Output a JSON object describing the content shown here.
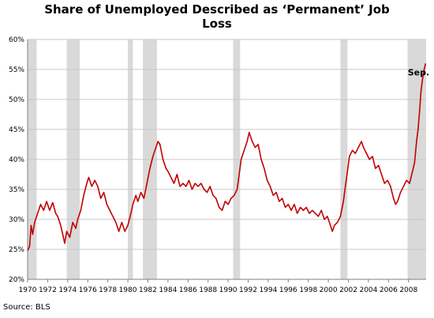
{
  "chart_data": {
    "type": "line",
    "title_lines": [
      "Share of Unemployed Described as ‘Permanent’ Job",
      "Loss"
    ],
    "xlabel": "",
    "ylabel": "",
    "xlim": [
      1970,
      2009.75
    ],
    "ylim": [
      20,
      60
    ],
    "y_ticks": [
      20,
      25,
      30,
      35,
      40,
      45,
      50,
      55,
      60
    ],
    "y_tick_suffix": "%",
    "x_ticks": [
      1970,
      1972,
      1974,
      1976,
      1978,
      1980,
      1982,
      1984,
      1986,
      1988,
      1990,
      1992,
      1994,
      1996,
      1998,
      2000,
      2002,
      2004,
      2006,
      2008
    ],
    "grid": true,
    "recession_bands": [
      [
        1970.0,
        1970.9
      ],
      [
        1973.9,
        1975.2
      ],
      [
        1980.0,
        1980.5
      ],
      [
        1981.5,
        1982.9
      ],
      [
        1990.5,
        1991.2
      ],
      [
        2001.2,
        2001.9
      ],
      [
        2007.9,
        2009.75
      ]
    ],
    "series": [
      {
        "color": "#c00000",
        "points": [
          [
            1970.0,
            24.8
          ],
          [
            1970.2,
            25.5
          ],
          [
            1970.35,
            29.0
          ],
          [
            1970.5,
            27.5
          ],
          [
            1970.7,
            29.5
          ],
          [
            1971.0,
            31.0
          ],
          [
            1971.3,
            32.5
          ],
          [
            1971.6,
            31.5
          ],
          [
            1971.9,
            33.0
          ],
          [
            1972.2,
            31.5
          ],
          [
            1972.5,
            32.8
          ],
          [
            1972.8,
            31.0
          ],
          [
            1973.0,
            30.5
          ],
          [
            1973.3,
            29.0
          ],
          [
            1973.5,
            27.5
          ],
          [
            1973.7,
            26.0
          ],
          [
            1973.9,
            28.0
          ],
          [
            1974.2,
            27.0
          ],
          [
            1974.5,
            29.5
          ],
          [
            1974.8,
            28.5
          ],
          [
            1975.0,
            30.0
          ],
          [
            1975.3,
            31.5
          ],
          [
            1975.6,
            34.0
          ],
          [
            1975.9,
            36.0
          ],
          [
            1976.1,
            37.0
          ],
          [
            1976.4,
            35.5
          ],
          [
            1976.7,
            36.5
          ],
          [
            1977.0,
            35.5
          ],
          [
            1977.3,
            33.5
          ],
          [
            1977.6,
            34.5
          ],
          [
            1977.9,
            32.5
          ],
          [
            1978.2,
            31.5
          ],
          [
            1978.5,
            30.5
          ],
          [
            1978.8,
            29.5
          ],
          [
            1979.1,
            28.0
          ],
          [
            1979.4,
            29.5
          ],
          [
            1979.7,
            28.0
          ],
          [
            1980.0,
            29.0
          ],
          [
            1980.3,
            31.0
          ],
          [
            1980.5,
            32.5
          ],
          [
            1980.8,
            34.0
          ],
          [
            1981.0,
            33.0
          ],
          [
            1981.3,
            34.5
          ],
          [
            1981.6,
            33.5
          ],
          [
            1981.9,
            36.0
          ],
          [
            1982.2,
            38.5
          ],
          [
            1982.5,
            40.5
          ],
          [
            1982.8,
            42.0
          ],
          [
            1983.0,
            43.0
          ],
          [
            1983.2,
            42.5
          ],
          [
            1983.5,
            40.0
          ],
          [
            1983.8,
            38.5
          ],
          [
            1984.0,
            38.0
          ],
          [
            1984.3,
            37.0
          ],
          [
            1984.6,
            36.0
          ],
          [
            1984.9,
            37.5
          ],
          [
            1985.2,
            35.5
          ],
          [
            1985.5,
            36.0
          ],
          [
            1985.8,
            35.5
          ],
          [
            1986.1,
            36.5
          ],
          [
            1986.4,
            35.0
          ],
          [
            1986.7,
            36.0
          ],
          [
            1987.0,
            35.5
          ],
          [
            1987.3,
            36.0
          ],
          [
            1987.6,
            35.0
          ],
          [
            1987.9,
            34.5
          ],
          [
            1988.2,
            35.5
          ],
          [
            1988.5,
            34.0
          ],
          [
            1988.8,
            33.5
          ],
          [
            1989.1,
            32.0
          ],
          [
            1989.4,
            31.5
          ],
          [
            1989.7,
            33.0
          ],
          [
            1990.0,
            32.5
          ],
          [
            1990.3,
            33.5
          ],
          [
            1990.6,
            34.0
          ],
          [
            1990.9,
            35.0
          ],
          [
            1991.1,
            37.5
          ],
          [
            1991.3,
            40.0
          ],
          [
            1991.6,
            41.5
          ],
          [
            1991.9,
            43.0
          ],
          [
            1992.1,
            44.5
          ],
          [
            1992.4,
            43.0
          ],
          [
            1992.7,
            42.0
          ],
          [
            1993.0,
            42.5
          ],
          [
            1993.3,
            40.0
          ],
          [
            1993.6,
            38.5
          ],
          [
            1993.9,
            36.5
          ],
          [
            1994.2,
            35.5
          ],
          [
            1994.5,
            34.0
          ],
          [
            1994.8,
            34.5
          ],
          [
            1995.1,
            33.0
          ],
          [
            1995.4,
            33.5
          ],
          [
            1995.7,
            32.0
          ],
          [
            1996.0,
            32.5
          ],
          [
            1996.3,
            31.5
          ],
          [
            1996.6,
            32.5
          ],
          [
            1996.9,
            31.0
          ],
          [
            1997.2,
            32.0
          ],
          [
            1997.5,
            31.5
          ],
          [
            1997.8,
            32.0
          ],
          [
            1998.1,
            31.0
          ],
          [
            1998.4,
            31.5
          ],
          [
            1998.7,
            31.0
          ],
          [
            1999.0,
            30.5
          ],
          [
            1999.3,
            31.5
          ],
          [
            1999.6,
            30.0
          ],
          [
            1999.9,
            30.5
          ],
          [
            2000.2,
            29.0
          ],
          [
            2000.4,
            28.0
          ],
          [
            2000.6,
            29.0
          ],
          [
            2000.9,
            29.5
          ],
          [
            2001.2,
            30.5
          ],
          [
            2001.5,
            33.0
          ],
          [
            2001.7,
            35.5
          ],
          [
            2001.9,
            38.0
          ],
          [
            2002.1,
            40.5
          ],
          [
            2002.4,
            41.5
          ],
          [
            2002.7,
            41.0
          ],
          [
            2003.0,
            42.0
          ],
          [
            2003.3,
            43.0
          ],
          [
            2003.5,
            42.0
          ],
          [
            2003.8,
            41.0
          ],
          [
            2004.1,
            40.0
          ],
          [
            2004.4,
            40.5
          ],
          [
            2004.7,
            38.5
          ],
          [
            2005.0,
            39.0
          ],
          [
            2005.3,
            37.5
          ],
          [
            2005.6,
            36.0
          ],
          [
            2005.9,
            36.5
          ],
          [
            2006.2,
            35.5
          ],
          [
            2006.5,
            33.5
          ],
          [
            2006.7,
            32.5
          ],
          [
            2006.9,
            33.0
          ],
          [
            2007.2,
            34.5
          ],
          [
            2007.5,
            35.5
          ],
          [
            2007.8,
            36.5
          ],
          [
            2008.1,
            36.0
          ],
          [
            2008.4,
            38.0
          ],
          [
            2008.6,
            39.5
          ],
          [
            2008.8,
            43.0
          ],
          [
            2008.95,
            45.0
          ],
          [
            2009.1,
            48.0
          ],
          [
            2009.25,
            51.5
          ],
          [
            2009.4,
            53.5
          ],
          [
            2009.55,
            55.0
          ],
          [
            2009.7,
            56.0
          ]
        ]
      }
    ],
    "annotation": {
      "text": "Sep.",
      "x": 2009.0,
      "y": 54.0
    }
  },
  "source_note": "Source: BLS"
}
